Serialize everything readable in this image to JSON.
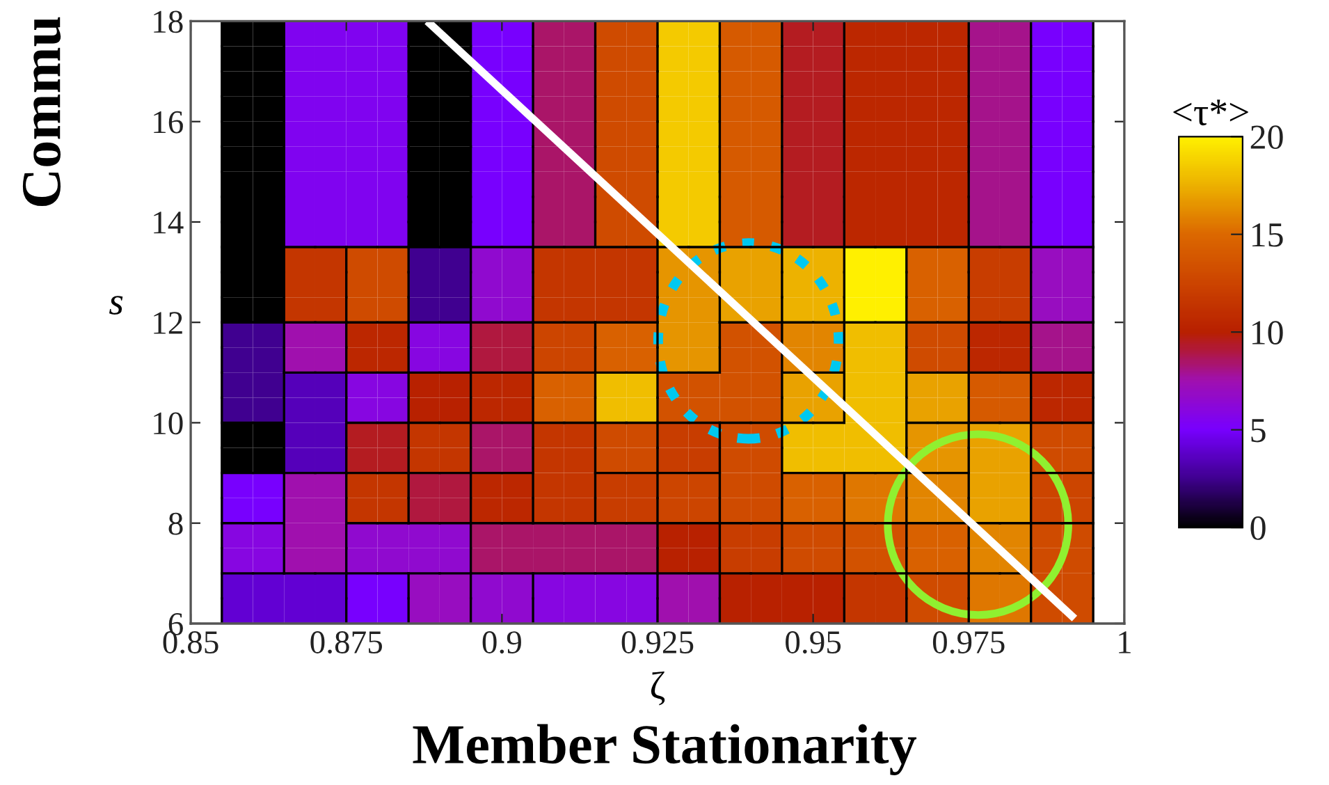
{
  "chart_data": {
    "type": "heatmap",
    "xlabel": "ζ",
    "ylabel": "s",
    "clabel": "<τ*>",
    "annotations": [
      "Member Stationarity",
      "Commu"
    ],
    "cells": [
      [
        null,
        0,
        0,
        5.5,
        5.5,
        5.5,
        5.5,
        0,
        0,
        5,
        5,
        8.5,
        8.5,
        13,
        13,
        18.5,
        18.5,
        14,
        14,
        9.5,
        9.5,
        10.5,
        10.5,
        10.5,
        10.5,
        8,
        8,
        5,
        5,
        null
      ],
      [
        null,
        0,
        0,
        5.5,
        5.5,
        5.5,
        5.5,
        0,
        0,
        5,
        5,
        8.5,
        8.5,
        13,
        13,
        18.5,
        18.5,
        14,
        14,
        9.5,
        9.5,
        10.5,
        10.5,
        10.5,
        10.5,
        8,
        8,
        5,
        5,
        null
      ],
      [
        null,
        0,
        0,
        5.5,
        5.5,
        5.5,
        5.5,
        0,
        0,
        5,
        5,
        8.5,
        8.5,
        13,
        13,
        18.5,
        18.5,
        14,
        14,
        9.5,
        9.5,
        10.5,
        10.5,
        10.5,
        10.5,
        8,
        8,
        5,
        5,
        null
      ],
      [
        null,
        0,
        0,
        5.5,
        5.5,
        5.5,
        5.5,
        0,
        0,
        5,
        5,
        8.5,
        8.5,
        13,
        13,
        18.5,
        18.5,
        14,
        14,
        9.5,
        9.5,
        10.5,
        10.5,
        10.5,
        10.5,
        8,
        8,
        5,
        5,
        null
      ],
      [
        null,
        0,
        0,
        5.5,
        5.5,
        5.5,
        5.5,
        0,
        0,
        5,
        5,
        8.5,
        8.5,
        13,
        13,
        18.5,
        18.5,
        14,
        14,
        9.5,
        9.5,
        10.5,
        10.5,
        10.5,
        10.5,
        8,
        8,
        5,
        5,
        null
      ],
      [
        null,
        0,
        0,
        5.5,
        5.5,
        5.5,
        5.5,
        0,
        0,
        5,
        5,
        8.5,
        8.5,
        13,
        13,
        18.5,
        18.5,
        14,
        14,
        9.5,
        9.5,
        10.5,
        10.5,
        10.5,
        10.5,
        8,
        8,
        5,
        5,
        null
      ],
      [
        null,
        0,
        0,
        5.5,
        5.5,
        5.5,
        5.5,
        0,
        0,
        5,
        5,
        8.5,
        8.5,
        13,
        13,
        18.5,
        18.5,
        14,
        14,
        9.5,
        9.5,
        10.5,
        10.5,
        10.5,
        10.5,
        8,
        8,
        5,
        5,
        null
      ],
      [
        null,
        0,
        0,
        5.5,
        5.5,
        5.5,
        5.5,
        0,
        0,
        5,
        5,
        8.5,
        8.5,
        13,
        13,
        18.5,
        18.5,
        14,
        14,
        9.5,
        9.5,
        10.5,
        10.5,
        10.5,
        10.5,
        8,
        8,
        5,
        5,
        null
      ],
      [
        null,
        0,
        0,
        5.5,
        5.5,
        5.5,
        5.5,
        0,
        0,
        5,
        5,
        8.5,
        8.5,
        13,
        13,
        18.5,
        18.5,
        14,
        14,
        9.5,
        9.5,
        10.5,
        10.5,
        10.5,
        10.5,
        8,
        8,
        5,
        5,
        null
      ],
      [
        null,
        0,
        0,
        11.5,
        11.5,
        13,
        13,
        2.5,
        2.5,
        6.5,
        6.5,
        11.5,
        11.5,
        11.5,
        11.5,
        16.5,
        16.5,
        17,
        17,
        17.5,
        17.5,
        20,
        20,
        14.5,
        14.5,
        12,
        12,
        7,
        7,
        null
      ],
      [
        null,
        0,
        0,
        11.5,
        11.5,
        13,
        13,
        2.5,
        2.5,
        6.5,
        6.5,
        11.5,
        11.5,
        11.5,
        11.5,
        16.5,
        16.5,
        17,
        17,
        17.5,
        17.5,
        20,
        20,
        14.5,
        14.5,
        12,
        12,
        7,
        7,
        null
      ],
      [
        null,
        0,
        0,
        11.5,
        11.5,
        13,
        13,
        2.5,
        2.5,
        6.5,
        6.5,
        11.5,
        11.5,
        11.5,
        11.5,
        16.5,
        16.5,
        17,
        17,
        17.5,
        17.5,
        20,
        20,
        14.5,
        14.5,
        12,
        12,
        7,
        7,
        null
      ],
      [
        null,
        2.5,
        2.5,
        7.5,
        7.5,
        10.5,
        10.5,
        6,
        6,
        9,
        9,
        12.5,
        12.5,
        14.5,
        14.5,
        16.5,
        16.5,
        13.5,
        13.5,
        16,
        16,
        18,
        18,
        13,
        13,
        10.5,
        10.5,
        8,
        8,
        null
      ],
      [
        null,
        2.5,
        2.5,
        7.5,
        7.5,
        10.5,
        10.5,
        6,
        6,
        9,
        9,
        12.5,
        12.5,
        14.5,
        14.5,
        16.5,
        16.5,
        13.5,
        13.5,
        16,
        16,
        18,
        18,
        13,
        13,
        10.5,
        10.5,
        8,
        8,
        null
      ],
      [
        null,
        2.5,
        2.5,
        3.5,
        3.5,
        6,
        6,
        10,
        10,
        10.5,
        10.5,
        14.5,
        14.5,
        18,
        18,
        13.5,
        13.5,
        13.5,
        13.5,
        17,
        17,
        18,
        18,
        17,
        17,
        14,
        14,
        10.5,
        10.5,
        null
      ],
      [
        null,
        2.5,
        2.5,
        3.5,
        3.5,
        6,
        6,
        10,
        10,
        10.5,
        10.5,
        14.5,
        14.5,
        18,
        18,
        13.5,
        13.5,
        13.5,
        13.5,
        17,
        17,
        18,
        18,
        17,
        17,
        14,
        14,
        10.5,
        10.5,
        null
      ],
      [
        null,
        0,
        0,
        3.5,
        3.5,
        9.5,
        9.5,
        11.5,
        11.5,
        8.5,
        8.5,
        11.5,
        11.5,
        13,
        13,
        12,
        12,
        13,
        13,
        18,
        18,
        18,
        18,
        16.5,
        16.5,
        17,
        17,
        13,
        13,
        null
      ],
      [
        null,
        0,
        0,
        3.5,
        3.5,
        9.5,
        9.5,
        11.5,
        11.5,
        8.5,
        8.5,
        11.5,
        11.5,
        13,
        13,
        12,
        12,
        13,
        13,
        18,
        18,
        18,
        18,
        16.5,
        16.5,
        17,
        17,
        13,
        13,
        null
      ],
      [
        null,
        5,
        5,
        7.5,
        7.5,
        11.5,
        11.5,
        9,
        9,
        10.5,
        10.5,
        11.5,
        11.5,
        12,
        12,
        12.5,
        12.5,
        13,
        13,
        14.5,
        14.5,
        15.5,
        15.5,
        16,
        16,
        17,
        17,
        12.5,
        12.5,
        null
      ],
      [
        null,
        5,
        5,
        7.5,
        7.5,
        11.5,
        11.5,
        9,
        9,
        10.5,
        10.5,
        11.5,
        11.5,
        12,
        12,
        12.5,
        12.5,
        13,
        13,
        14.5,
        14.5,
        15.5,
        15.5,
        16,
        16,
        17,
        17,
        12.5,
        12.5,
        null
      ],
      [
        null,
        6,
        6,
        7.5,
        7.5,
        6.5,
        6.5,
        6.5,
        6.5,
        8.5,
        8.5,
        8.5,
        8.5,
        8.5,
        8.5,
        10,
        10,
        12,
        12,
        13,
        13,
        13.5,
        13.5,
        14.5,
        14.5,
        16,
        16,
        13,
        13,
        null
      ],
      [
        null,
        6,
        6,
        7.5,
        7.5,
        6.5,
        6.5,
        6.5,
        6.5,
        8.5,
        8.5,
        8.5,
        8.5,
        8.5,
        8.5,
        10,
        10,
        12,
        12,
        13,
        13,
        13.5,
        13.5,
        14.5,
        14.5,
        16,
        16,
        13,
        13,
        null
      ],
      [
        null,
        4,
        4,
        4,
        4,
        5,
        5,
        7,
        7,
        6.5,
        6.5,
        6,
        6,
        6,
        6,
        7.5,
        7.5,
        10,
        10,
        10,
        10,
        11.5,
        11.5,
        13,
        13,
        15.5,
        15.5,
        13,
        13,
        null
      ],
      [
        null,
        4,
        4,
        4,
        4,
        5,
        5,
        7,
        7,
        6.5,
        6.5,
        6,
        6,
        6,
        6,
        7.5,
        7.5,
        10,
        10,
        10,
        10,
        11.5,
        11.5,
        13,
        13,
        15.5,
        15.5,
        13,
        13,
        null
      ]
    ],
    "clim": [
      0,
      20
    ],
    "cticks": [
      0,
      5,
      10,
      15,
      20
    ],
    "xlim": [
      0.85,
      1
    ],
    "ylim": [
      6,
      18
    ],
    "xticks": [
      0.85,
      0.875,
      0.9,
      0.925,
      0.95,
      0.975,
      1
    ],
    "yticks": [
      6,
      8,
      10,
      12,
      14,
      16,
      18
    ],
    "series": [
      {
        "type": "line",
        "color": "#ffffff",
        "x": [
          0.888,
          0.992
        ],
        "values": [
          18,
          6.1
        ]
      }
    ],
    "grid": false
  }
}
